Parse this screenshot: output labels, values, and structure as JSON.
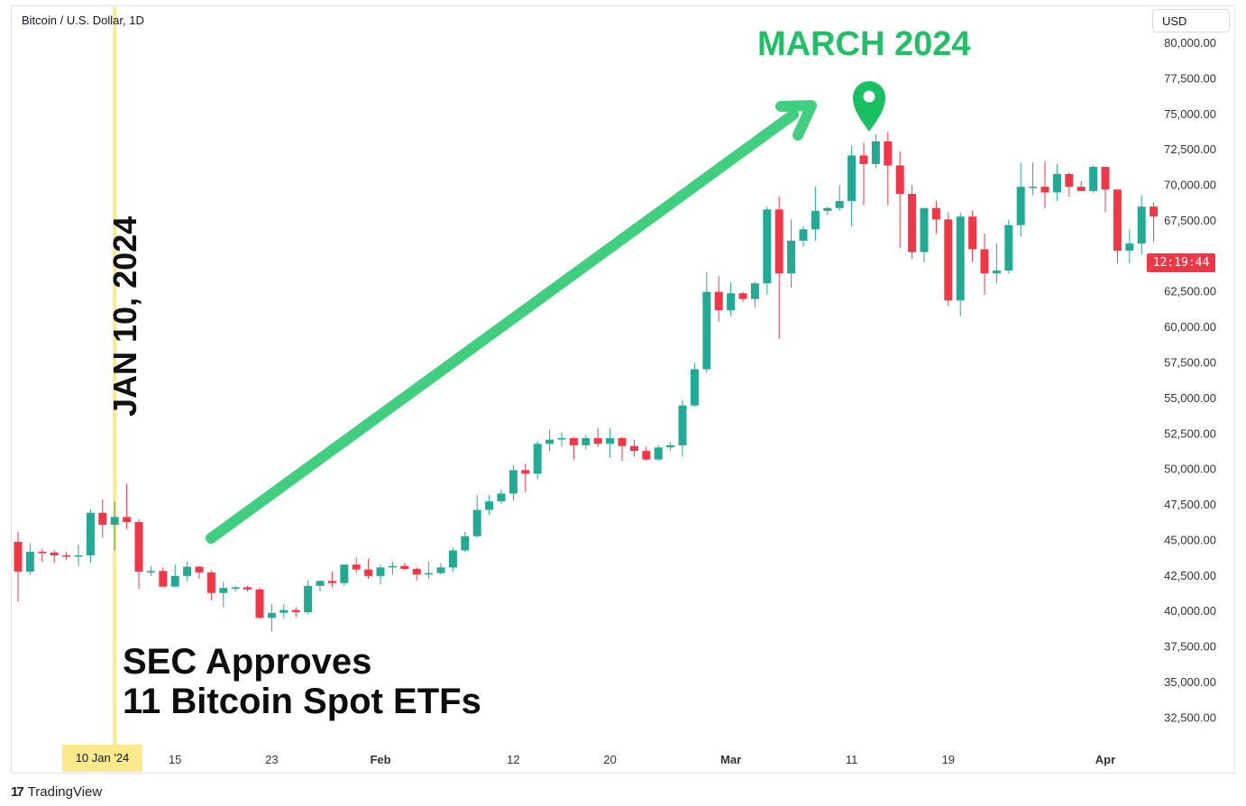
{
  "header": {
    "symbol_title": "Bitcoin / U.S. Dollar, 1D",
    "currency_button": "USD"
  },
  "price_label": "12:19:44",
  "event_marker": {
    "date_label": "10 Jan '24",
    "line_color": "#fbe98a"
  },
  "annotations": {
    "vertical_date": "JAN 10, 2024",
    "sec_line1": "SEC Approves",
    "sec_line2": "11 Bitcoin Spot ETFs",
    "peak_label": "MARCH 2024",
    "arrow_color": "#3fcf7f",
    "pin_color": "#19c062"
  },
  "footer": {
    "brand_logo": "17",
    "brand_name": "TradingView"
  },
  "colors": {
    "up": "#22ab94",
    "down": "#f23645",
    "grid_text": "#333333"
  },
  "chart_data": {
    "type": "candlestick",
    "title": "Bitcoin / U.S. Dollar, 1D",
    "x_tick_labels": [
      "10 Jan '24",
      "15",
      "23",
      "Feb",
      "12",
      "20",
      "Mar",
      "11",
      "19",
      "Apr"
    ],
    "y_tick_labels": [
      "80,000.00",
      "77,500.00",
      "75,000.00",
      "72,500.00",
      "70,000.00",
      "67,500.00",
      "62,500.00",
      "60,000.00",
      "57,500.00",
      "55,000.00",
      "52,500.00",
      "50,000.00",
      "47,500.00",
      "45,000.00",
      "42,500.00",
      "40,000.00",
      "37,500.00",
      "35,000.00",
      "32,500.00"
    ],
    "ylim": [
      30000,
      80000
    ],
    "xlabel": "",
    "ylabel": "",
    "candles": [
      {
        "date": "2024-01-02",
        "o": 44900,
        "h": 45600,
        "l": 40700,
        "c": 42800
      },
      {
        "date": "2024-01-03",
        "o": 42800,
        "h": 44800,
        "l": 42600,
        "c": 44200
      },
      {
        "date": "2024-01-04",
        "o": 44200,
        "h": 44400,
        "l": 43500,
        "c": 44150
      },
      {
        "date": "2024-01-05",
        "o": 44150,
        "h": 44300,
        "l": 43400,
        "c": 43950
      },
      {
        "date": "2024-01-06",
        "o": 43950,
        "h": 44200,
        "l": 43600,
        "c": 43900
      },
      {
        "date": "2024-01-07",
        "o": 43900,
        "h": 44700,
        "l": 43200,
        "c": 43950
      },
      {
        "date": "2024-01-08",
        "o": 43950,
        "h": 47200,
        "l": 43400,
        "c": 46950
      },
      {
        "date": "2024-01-09",
        "o": 46950,
        "h": 47900,
        "l": 45200,
        "c": 46100
      },
      {
        "date": "2024-01-10",
        "o": 46100,
        "h": 47700,
        "l": 44300,
        "c": 46650
      },
      {
        "date": "2024-01-11",
        "o": 46650,
        "h": 49000,
        "l": 45800,
        "c": 46300
      },
      {
        "date": "2024-01-12",
        "o": 46300,
        "h": 46500,
        "l": 41600,
        "c": 42800
      },
      {
        "date": "2024-01-13",
        "o": 42800,
        "h": 43200,
        "l": 42500,
        "c": 42850
      },
      {
        "date": "2024-01-14",
        "o": 42850,
        "h": 43100,
        "l": 41700,
        "c": 41750
      },
      {
        "date": "2024-01-15",
        "o": 41750,
        "h": 43300,
        "l": 41700,
        "c": 42500
      },
      {
        "date": "2024-01-16",
        "o": 42500,
        "h": 43500,
        "l": 42100,
        "c": 43150
      },
      {
        "date": "2024-01-17",
        "o": 43150,
        "h": 43200,
        "l": 42300,
        "c": 42750
      },
      {
        "date": "2024-01-18",
        "o": 42750,
        "h": 42900,
        "l": 40800,
        "c": 41300
      },
      {
        "date": "2024-01-19",
        "o": 41300,
        "h": 42100,
        "l": 40300,
        "c": 41650
      },
      {
        "date": "2024-01-20",
        "o": 41650,
        "h": 41800,
        "l": 41400,
        "c": 41700
      },
      {
        "date": "2024-01-21",
        "o": 41700,
        "h": 41800,
        "l": 41400,
        "c": 41550
      },
      {
        "date": "2024-01-22",
        "o": 41550,
        "h": 41700,
        "l": 39500,
        "c": 39550
      },
      {
        "date": "2024-01-23",
        "o": 39550,
        "h": 40500,
        "l": 38600,
        "c": 39900
      },
      {
        "date": "2024-01-24",
        "o": 39900,
        "h": 40500,
        "l": 39500,
        "c": 40100
      },
      {
        "date": "2024-01-25",
        "o": 40100,
        "h": 40300,
        "l": 39600,
        "c": 39950
      },
      {
        "date": "2024-01-26",
        "o": 39950,
        "h": 42200,
        "l": 39800,
        "c": 41800
      },
      {
        "date": "2024-01-27",
        "o": 41800,
        "h": 42200,
        "l": 41400,
        "c": 42150
      },
      {
        "date": "2024-01-28",
        "o": 42150,
        "h": 42800,
        "l": 41700,
        "c": 42000
      },
      {
        "date": "2024-01-29",
        "o": 42000,
        "h": 43300,
        "l": 41800,
        "c": 43300
      },
      {
        "date": "2024-01-30",
        "o": 43300,
        "h": 43800,
        "l": 42700,
        "c": 42950
      },
      {
        "date": "2024-01-31",
        "o": 42950,
        "h": 43700,
        "l": 42300,
        "c": 42500
      },
      {
        "date": "2024-02-01",
        "o": 42500,
        "h": 43300,
        "l": 41900,
        "c": 43100
      },
      {
        "date": "2024-02-02",
        "o": 43100,
        "h": 43500,
        "l": 42600,
        "c": 43200
      },
      {
        "date": "2024-02-03",
        "o": 43200,
        "h": 43400,
        "l": 42900,
        "c": 43000
      },
      {
        "date": "2024-02-04",
        "o": 43000,
        "h": 43100,
        "l": 42200,
        "c": 42600
      },
      {
        "date": "2024-02-05",
        "o": 42600,
        "h": 43500,
        "l": 42300,
        "c": 42700
      },
      {
        "date": "2024-02-06",
        "o": 42700,
        "h": 43400,
        "l": 42600,
        "c": 43100
      },
      {
        "date": "2024-02-07",
        "o": 43100,
        "h": 44500,
        "l": 42800,
        "c": 44300
      },
      {
        "date": "2024-02-08",
        "o": 44300,
        "h": 45600,
        "l": 44200,
        "c": 45300
      },
      {
        "date": "2024-02-09",
        "o": 45300,
        "h": 48200,
        "l": 45200,
        "c": 47150
      },
      {
        "date": "2024-02-10",
        "o": 47150,
        "h": 48200,
        "l": 46800,
        "c": 47750
      },
      {
        "date": "2024-02-11",
        "o": 47750,
        "h": 48600,
        "l": 47600,
        "c": 48300
      },
      {
        "date": "2024-02-12",
        "o": 48300,
        "h": 50300,
        "l": 47800,
        "c": 49950
      },
      {
        "date": "2024-02-13",
        "o": 49950,
        "h": 50400,
        "l": 48400,
        "c": 49700
      },
      {
        "date": "2024-02-14",
        "o": 49700,
        "h": 52000,
        "l": 49300,
        "c": 51800
      },
      {
        "date": "2024-02-15",
        "o": 51800,
        "h": 52800,
        "l": 51300,
        "c": 52100
      },
      {
        "date": "2024-02-16",
        "o": 52100,
        "h": 52600,
        "l": 51600,
        "c": 52200
      },
      {
        "date": "2024-02-17",
        "o": 52200,
        "h": 52300,
        "l": 50700,
        "c": 51700
      },
      {
        "date": "2024-02-18",
        "o": 51700,
        "h": 52400,
        "l": 51400,
        "c": 52200
      },
      {
        "date": "2024-02-19",
        "o": 52200,
        "h": 52900,
        "l": 51600,
        "c": 51800
      },
      {
        "date": "2024-02-20",
        "o": 51800,
        "h": 52900,
        "l": 50800,
        "c": 52200
      },
      {
        "date": "2024-02-21",
        "o": 52200,
        "h": 52300,
        "l": 50600,
        "c": 51650
      },
      {
        "date": "2024-02-22",
        "o": 51650,
        "h": 52100,
        "l": 50900,
        "c": 51300
      },
      {
        "date": "2024-02-23",
        "o": 51300,
        "h": 51600,
        "l": 50600,
        "c": 50700
      },
      {
        "date": "2024-02-24",
        "o": 50700,
        "h": 51700,
        "l": 50600,
        "c": 51550
      },
      {
        "date": "2024-02-25",
        "o": 51550,
        "h": 51900,
        "l": 51300,
        "c": 51700
      },
      {
        "date": "2024-02-26",
        "o": 51700,
        "h": 54900,
        "l": 50900,
        "c": 54500
      },
      {
        "date": "2024-02-27",
        "o": 54500,
        "h": 57500,
        "l": 54400,
        "c": 57050
      },
      {
        "date": "2024-02-28",
        "o": 57050,
        "h": 63900,
        "l": 56800,
        "c": 62500
      },
      {
        "date": "2024-02-29",
        "o": 62500,
        "h": 63600,
        "l": 60400,
        "c": 61200
      },
      {
        "date": "2024-03-01",
        "o": 61200,
        "h": 63200,
        "l": 60800,
        "c": 62400
      },
      {
        "date": "2024-03-02",
        "o": 62400,
        "h": 62500,
        "l": 61800,
        "c": 62000
      },
      {
        "date": "2024-03-03",
        "o": 62000,
        "h": 63200,
        "l": 61400,
        "c": 63100
      },
      {
        "date": "2024-03-04",
        "o": 63100,
        "h": 68500,
        "l": 62300,
        "c": 68300
      },
      {
        "date": "2024-03-05",
        "o": 68300,
        "h": 69200,
        "l": 59200,
        "c": 63800
      },
      {
        "date": "2024-03-06",
        "o": 63800,
        "h": 67600,
        "l": 62800,
        "c": 66100
      },
      {
        "date": "2024-03-07",
        "o": 66100,
        "h": 67100,
        "l": 65700,
        "c": 66900
      },
      {
        "date": "2024-03-08",
        "o": 66900,
        "h": 69900,
        "l": 66100,
        "c": 68200
      },
      {
        "date": "2024-03-09",
        "o": 68200,
        "h": 68500,
        "l": 67900,
        "c": 68400
      },
      {
        "date": "2024-03-10",
        "o": 68400,
        "h": 70000,
        "l": 68200,
        "c": 68900
      },
      {
        "date": "2024-03-11",
        "o": 68900,
        "h": 72800,
        "l": 67100,
        "c": 72100
      },
      {
        "date": "2024-03-12",
        "o": 72100,
        "h": 73000,
        "l": 68600,
        "c": 71500
      },
      {
        "date": "2024-03-13",
        "o": 71500,
        "h": 73600,
        "l": 71200,
        "c": 73100
      },
      {
        "date": "2024-03-14",
        "o": 73100,
        "h": 73750,
        "l": 68600,
        "c": 71400
      },
      {
        "date": "2024-03-15",
        "o": 71400,
        "h": 72400,
        "l": 65600,
        "c": 69400
      },
      {
        "date": "2024-03-16",
        "o": 69400,
        "h": 70000,
        "l": 64800,
        "c": 65300
      },
      {
        "date": "2024-03-17",
        "o": 65300,
        "h": 68100,
        "l": 64600,
        "c": 68400
      },
      {
        "date": "2024-03-18",
        "o": 68400,
        "h": 68900,
        "l": 66600,
        "c": 67600
      },
      {
        "date": "2024-03-19",
        "o": 67600,
        "h": 68100,
        "l": 61500,
        "c": 61900
      },
      {
        "date": "2024-03-20",
        "o": 61900,
        "h": 68100,
        "l": 60800,
        "c": 67800
      },
      {
        "date": "2024-03-21",
        "o": 67800,
        "h": 68200,
        "l": 64600,
        "c": 65500
      },
      {
        "date": "2024-03-22",
        "o": 65500,
        "h": 66600,
        "l": 62300,
        "c": 63800
      },
      {
        "date": "2024-03-23",
        "o": 63800,
        "h": 65900,
        "l": 63100,
        "c": 64000
      },
      {
        "date": "2024-03-24",
        "o": 64000,
        "h": 67600,
        "l": 63800,
        "c": 67200
      },
      {
        "date": "2024-03-25",
        "o": 67200,
        "h": 71600,
        "l": 66400,
        "c": 69900
      },
      {
        "date": "2024-03-26",
        "o": 69900,
        "h": 71600,
        "l": 69300,
        "c": 69900
      },
      {
        "date": "2024-03-27",
        "o": 69900,
        "h": 71700,
        "l": 68400,
        "c": 69500
      },
      {
        "date": "2024-03-28",
        "o": 69500,
        "h": 71500,
        "l": 68900,
        "c": 70800
      },
      {
        "date": "2024-03-29",
        "o": 70800,
        "h": 70900,
        "l": 69200,
        "c": 69900
      },
      {
        "date": "2024-03-30",
        "o": 69900,
        "h": 70300,
        "l": 69600,
        "c": 69600
      },
      {
        "date": "2024-03-31",
        "o": 69600,
        "h": 71400,
        "l": 69500,
        "c": 71300
      },
      {
        "date": "2024-04-01",
        "o": 71300,
        "h": 71300,
        "l": 68100,
        "c": 69700
      },
      {
        "date": "2024-04-02",
        "o": 69700,
        "h": 69700,
        "l": 64500,
        "c": 65400
      },
      {
        "date": "2024-04-03",
        "o": 65400,
        "h": 66900,
        "l": 64500,
        "c": 65900
      },
      {
        "date": "2024-04-04",
        "o": 65900,
        "h": 69300,
        "l": 65100,
        "c": 68500
      },
      {
        "date": "2024-04-05",
        "o": 68500,
        "h": 68800,
        "l": 66000,
        "c": 67800
      }
    ]
  }
}
